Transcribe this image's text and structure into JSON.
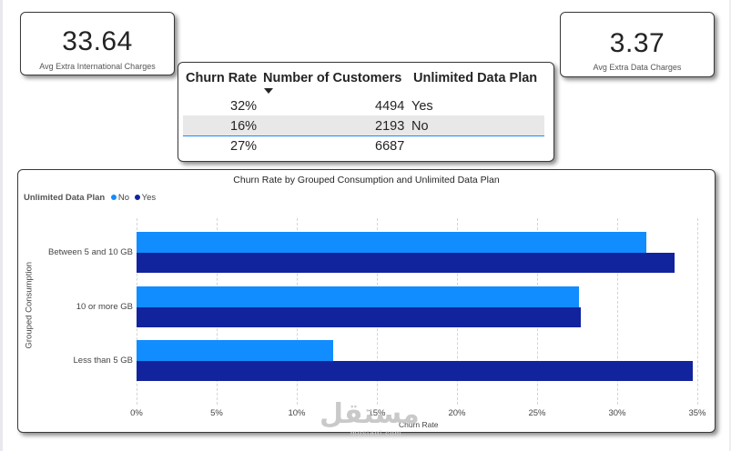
{
  "kpis": {
    "left": {
      "value": "33.64",
      "label": "Avg Extra International Charges"
    },
    "right": {
      "value": "3.37",
      "label": "Avg Extra Data Charges"
    }
  },
  "table": {
    "headers": [
      "Churn Rate",
      "Number of Customers",
      "Unlimited Data Plan"
    ],
    "rows": [
      {
        "churn_rate": "32%",
        "customers": "4494",
        "plan": "Yes"
      },
      {
        "churn_rate": "16%",
        "customers": "2193",
        "plan": "No"
      },
      {
        "churn_rate": "27%",
        "customers": "6687",
        "plan": ""
      }
    ]
  },
  "colors": {
    "no": "#118dff",
    "yes": "#12239e"
  },
  "watermark": {
    "text": "مستقل",
    "sub": "mostaql.com"
  },
  "chart_data": {
    "type": "bar",
    "orientation": "horizontal",
    "title": "Churn Rate by Grouped Consumption and Unlimited Data Plan",
    "legend_title": "Unlimited Data Plan",
    "categories": [
      "Between 5 and 10 GB",
      "10 or more GB",
      "Less than 5 GB"
    ],
    "series": [
      {
        "name": "No",
        "values": [
          31.8,
          27.6,
          12.3
        ]
      },
      {
        "name": "Yes",
        "values": [
          33.6,
          27.7,
          34.7
        ]
      }
    ],
    "xlabel": "Churn Rate",
    "ylabel": "Grouped Consumption",
    "xlim": [
      0,
      35
    ],
    "xticks": [
      "0%",
      "5%",
      "10%",
      "15%",
      "20%",
      "25%",
      "30%",
      "35%"
    ]
  }
}
